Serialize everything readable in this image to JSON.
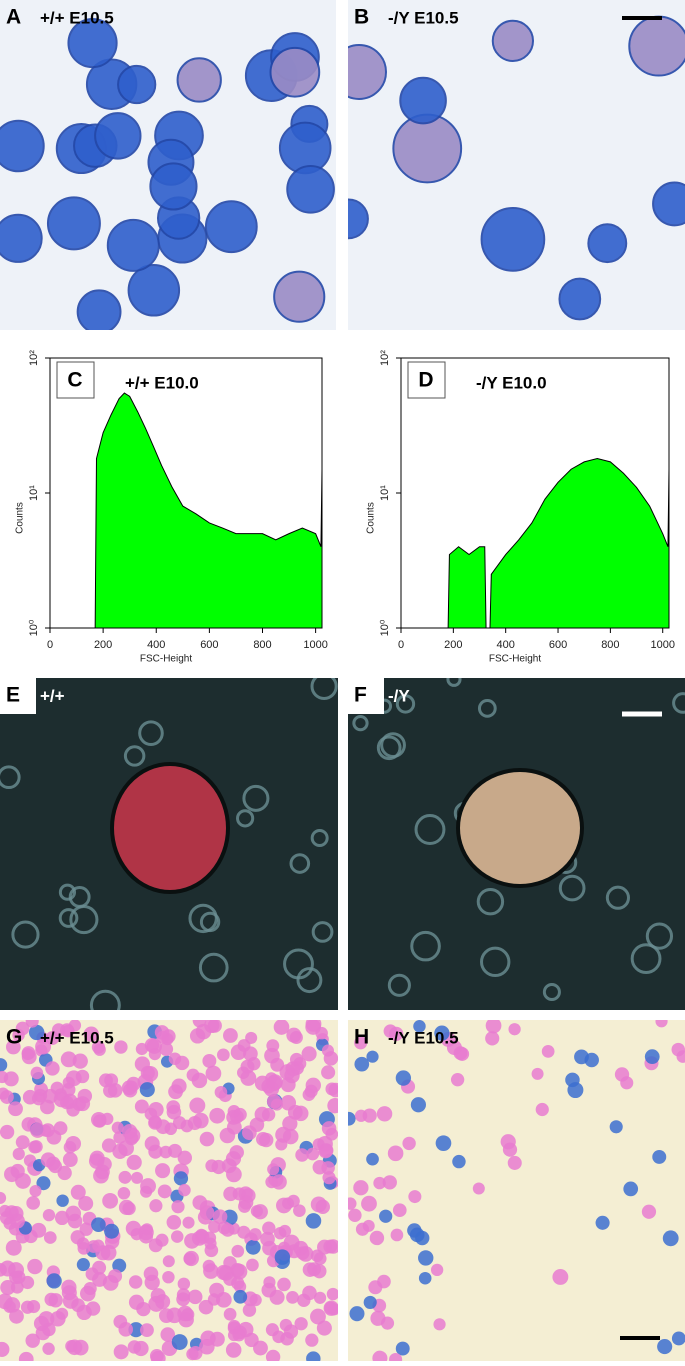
{
  "panels": [
    {
      "letter": "A",
      "label": "+/+ E10.5"
    },
    {
      "letter": "B",
      "label": "-/Y E10.5"
    },
    {
      "letter": "E",
      "label": "+/+"
    },
    {
      "letter": "F",
      "label": "-/Y"
    },
    {
      "letter": "G",
      "label": "+/+ E10.5"
    },
    {
      "letter": "H",
      "label": "-/Y E10.5"
    }
  ],
  "chart_data": [
    {
      "type": "area",
      "panel": "C",
      "title": "+/+ E10.0",
      "xlabel": "FSC-Height",
      "ylabel": "Counts",
      "color": "#00ff00",
      "log_y": true,
      "x": [
        170,
        175,
        200,
        230,
        260,
        280,
        300,
        330,
        360,
        390,
        420,
        460,
        500,
        550,
        600,
        650,
        700,
        750,
        800,
        850,
        900,
        950,
        1000,
        1020,
        1024,
        1024
      ],
      "values": [
        1,
        18,
        28,
        38,
        50,
        55,
        52,
        40,
        30,
        22,
        16,
        11,
        8,
        7,
        6,
        5.5,
        5,
        5,
        5,
        4.5,
        5,
        5.5,
        5,
        4,
        15,
        1
      ],
      "xlim": [
        0,
        1024
      ],
      "ylim": [
        1,
        100
      ],
      "xticks": [
        0,
        200,
        400,
        600,
        800,
        1000
      ],
      "yticks": [
        {
          "value": 1,
          "label": "10⁰"
        },
        {
          "value": 10,
          "label": "10¹"
        },
        {
          "value": 100,
          "label": "10²"
        }
      ]
    },
    {
      "type": "area",
      "panel": "D",
      "title": "-/Y E10.0",
      "xlabel": "FSC-Height",
      "ylabel": "Counts",
      "color": "#00ff00",
      "log_y": true,
      "x": [
        180,
        185,
        220,
        260,
        300,
        320,
        325,
        340,
        345,
        400,
        450,
        500,
        550,
        600,
        650,
        700,
        750,
        800,
        850,
        900,
        950,
        1000,
        1020,
        1024,
        1024
      ],
      "values": [
        1,
        3.5,
        4,
        3.5,
        4,
        4,
        1,
        1,
        2.5,
        3.5,
        4.5,
        6,
        9,
        12,
        15,
        17,
        18,
        17,
        14,
        11,
        8,
        5,
        4,
        15,
        1
      ],
      "xlim": [
        0,
        1024
      ],
      "ylim": [
        1,
        100
      ],
      "xticks": [
        0,
        200,
        400,
        600,
        800,
        1000
      ],
      "yticks": [
        {
          "value": 1,
          "label": "10⁰"
        },
        {
          "value": 10,
          "label": "10¹"
        },
        {
          "value": 100,
          "label": "10²"
        }
      ]
    }
  ]
}
